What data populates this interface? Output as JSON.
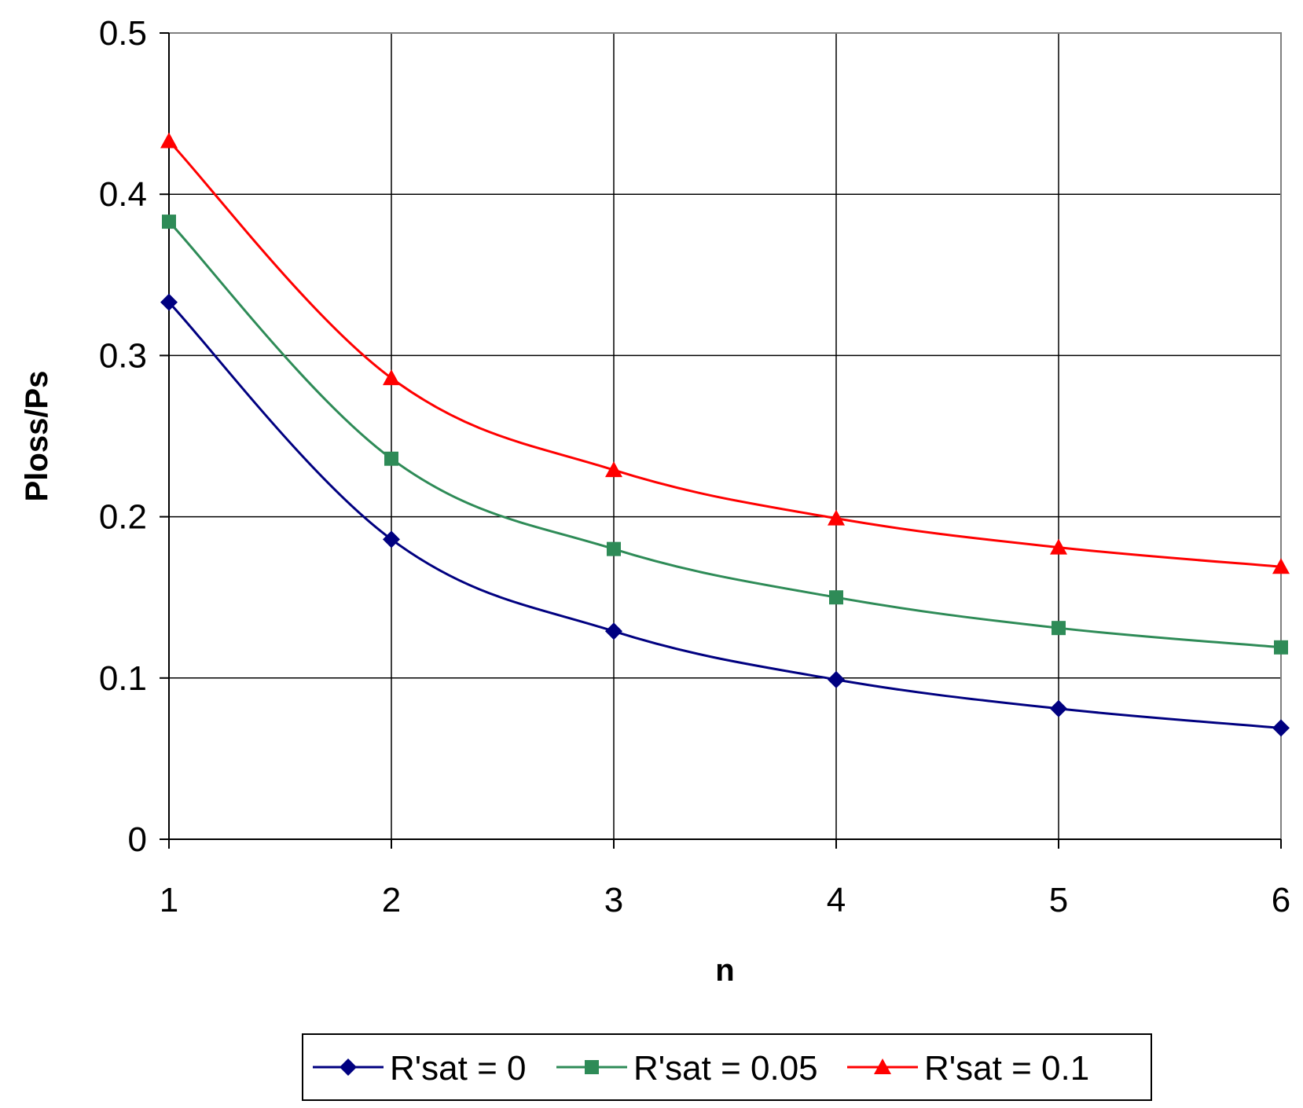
{
  "chart_data": {
    "type": "line",
    "title": "",
    "xlabel": "n",
    "ylabel": "Ploss/Ps",
    "xlim": [
      1,
      6
    ],
    "ylim": [
      0,
      0.5
    ],
    "x": [
      1,
      2,
      3,
      4,
      5,
      6
    ],
    "xticks": [
      "1",
      "2",
      "3",
      "4",
      "5",
      "6"
    ],
    "yticks": [
      "0",
      "0.1",
      "0.2",
      "0.3",
      "0.4",
      "0.5"
    ],
    "grid": true,
    "legend_position": "bottom",
    "series": [
      {
        "name": "R'sat = 0",
        "values": [
          0.333,
          0.186,
          0.129,
          0.099,
          0.081,
          0.069
        ],
        "color": "#000080",
        "marker": "diamond"
      },
      {
        "name": "R'sat = 0.05",
        "values": [
          0.383,
          0.236,
          0.18,
          0.15,
          0.131,
          0.119
        ],
        "color": "#2e8b57",
        "marker": "square"
      },
      {
        "name": "R'sat = 0.1",
        "values": [
          0.433,
          0.286,
          0.229,
          0.199,
          0.181,
          0.169
        ],
        "color": "#ff0000",
        "marker": "triangle"
      }
    ]
  }
}
